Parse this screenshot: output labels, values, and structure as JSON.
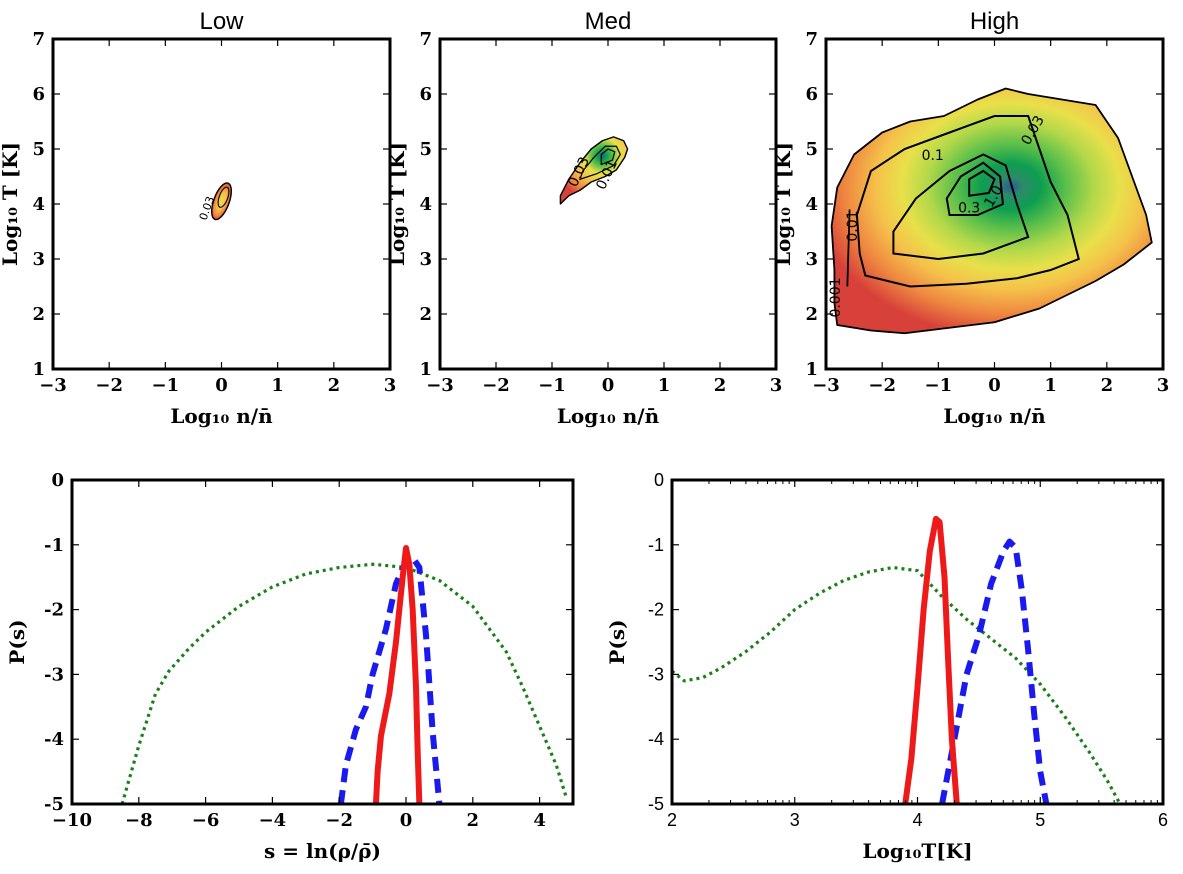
{
  "chart_data": [
    {
      "type": "contour",
      "panel": "low",
      "title": "Low",
      "xlabel": "Log₁₀ n/n̄",
      "ylabel": "Log₁₀ T [K]",
      "xlim": [
        -3,
        3
      ],
      "ylim": [
        1,
        7
      ],
      "xticks": [
        -3,
        -2,
        -1,
        0,
        1,
        2,
        3
      ],
      "yticks": [
        1,
        2,
        3,
        4,
        5,
        6,
        7
      ],
      "region": {
        "center": [
          0.0,
          4.05
        ],
        "extent_x": [
          -0.35,
          0.15
        ],
        "extent_y": [
          3.7,
          4.4
        ],
        "tilt_deg": 70
      },
      "contour_labels": [
        {
          "text": "0.03",
          "x": -0.2,
          "y": 3.9
        }
      ],
      "colormap": [
        "#d8403a",
        "#ee8640",
        "#f5c14a",
        "#e8e04a",
        "#b2d84a",
        "#5cbf4a",
        "#0d9e50",
        "#2e8a6a",
        "#2a5a9b"
      ]
    },
    {
      "type": "contour",
      "panel": "med",
      "title": "Med",
      "xlabel": "Log₁₀ n/n̄",
      "ylabel": "Log₁₀ T [K]",
      "xlim": [
        -3,
        3
      ],
      "ylim": [
        1,
        7
      ],
      "xticks": [
        -3,
        -2,
        -1,
        0,
        1,
        2,
        3
      ],
      "yticks": [
        1,
        2,
        3,
        4,
        5,
        6,
        7
      ],
      "region": {
        "center": [
          -0.15,
          4.6
        ],
        "extent_x": [
          -0.85,
          0.35
        ],
        "extent_y": [
          4.0,
          5.2
        ],
        "tilt_deg": 35
      },
      "contour_labels": [
        {
          "text": "0.03",
          "x": -0.45,
          "y": 4.55
        },
        {
          "text": "0.01",
          "x": 0.05,
          "y": 4.5
        }
      ]
    },
    {
      "type": "contour",
      "panel": "high",
      "title": "High",
      "xlabel": "Log₁₀ n/n̄",
      "ylabel": "Log₁₀ T [K]",
      "xlim": [
        -3,
        3
      ],
      "ylim": [
        1,
        7
      ],
      "xticks": [
        -3,
        -2,
        -1,
        0,
        1,
        2,
        3
      ],
      "yticks": [
        1,
        2,
        3,
        4,
        5,
        6,
        7
      ],
      "peak": [
        -0.3,
        4.3
      ],
      "contour_levels": [
        0.001,
        0.01,
        0.03,
        0.1,
        0.3,
        1.0
      ],
      "contour_labels": [
        {
          "text": "0.03",
          "x": 0.75,
          "y": 5.3
        },
        {
          "text": "0.1",
          "x": -1.1,
          "y": 4.8
        },
        {
          "text": "0.3",
          "x": -0.45,
          "y": 3.85
        },
        {
          "text": "1.0",
          "x": 0.05,
          "y": 4.1
        },
        {
          "text": "0.01",
          "x": -2.45,
          "y": 3.6
        },
        {
          "text": "0.001",
          "x": -2.75,
          "y": 2.3
        }
      ]
    },
    {
      "type": "line",
      "panel": "density-pdf",
      "xlabel": "s = ln(ρ/ρ̄)",
      "ylabel": "P(s)",
      "xlim": [
        -10,
        5
      ],
      "ylim": [
        -5,
        0
      ],
      "xticks": [
        -10,
        -8,
        -6,
        -4,
        -2,
        0,
        2,
        4
      ],
      "yticks": [
        0,
        -1,
        -2,
        -3,
        -4,
        -5
      ],
      "ytick_labels": [
        "0",
        "-1",
        "-2",
        "-3",
        "-4",
        "-5"
      ],
      "series": [
        {
          "style": "dotted",
          "color": "#1a7f1a",
          "x": [
            -8.5,
            -8.0,
            -7.5,
            -7.1,
            -6.5,
            -6.0,
            -5.0,
            -4.0,
            -3.0,
            -2.0,
            -1.0,
            0.0,
            1.0,
            2.0,
            3.0,
            3.5,
            4.0,
            4.5,
            4.8
          ],
          "y": [
            -5.0,
            -4.1,
            -3.3,
            -2.95,
            -2.6,
            -2.35,
            -1.95,
            -1.65,
            -1.45,
            -1.35,
            -1.3,
            -1.35,
            -1.55,
            -1.95,
            -2.65,
            -3.2,
            -3.8,
            -4.4,
            -4.9
          ]
        },
        {
          "style": "dashed",
          "color": "#1a1aee",
          "x": [
            -1.95,
            -1.8,
            -1.5,
            -1.2,
            -1.0,
            -0.6,
            -0.3,
            0.0,
            0.2,
            0.4,
            0.6,
            0.8,
            1.0
          ],
          "y": [
            -5.0,
            -4.4,
            -3.85,
            -3.5,
            -3.0,
            -2.3,
            -1.6,
            -1.25,
            -1.2,
            -1.35,
            -2.4,
            -3.9,
            -5.0
          ]
        },
        {
          "style": "solid",
          "color": "#ee1a1a",
          "x": [
            -0.9,
            -0.85,
            -0.75,
            -0.5,
            -0.3,
            -0.1,
            0.0,
            0.1,
            0.2,
            0.3,
            0.35,
            0.4
          ],
          "y": [
            -5.0,
            -4.5,
            -3.95,
            -3.3,
            -2.5,
            -1.5,
            -1.05,
            -1.3,
            -2.0,
            -3.2,
            -4.2,
            -5.0
          ]
        }
      ]
    },
    {
      "type": "line",
      "panel": "temperature-pdf",
      "xlabel": "Log₁₀T[K]",
      "ylabel": "P(s)",
      "xlim": [
        2,
        6
      ],
      "ylim": [
        -5,
        0
      ],
      "xticks": [
        2,
        3,
        4,
        5,
        6
      ],
      "yticks": [
        0,
        -1,
        -2,
        -3,
        -4,
        -5
      ],
      "ytick_labels": [
        "0",
        "-1",
        "-2",
        "-3",
        "-4",
        "-5"
      ],
      "series": [
        {
          "style": "dotted",
          "color": "#1a7f1a",
          "x": [
            2.0,
            2.1,
            2.25,
            2.4,
            2.6,
            2.8,
            3.0,
            3.2,
            3.4,
            3.6,
            3.8,
            4.0,
            4.2,
            4.4,
            4.6,
            4.8,
            5.0,
            5.2,
            5.4,
            5.55,
            5.65
          ],
          "y": [
            -2.95,
            -3.1,
            -3.05,
            -2.9,
            -2.65,
            -2.35,
            -2.0,
            -1.75,
            -1.55,
            -1.42,
            -1.35,
            -1.4,
            -1.8,
            -2.15,
            -2.45,
            -2.75,
            -3.15,
            -3.65,
            -4.2,
            -4.65,
            -5.0
          ]
        },
        {
          "style": "dashed",
          "color": "#1a1aee",
          "x": [
            4.2,
            4.3,
            4.4,
            4.5,
            4.6,
            4.7,
            4.75,
            4.8,
            4.85,
            4.9,
            4.95,
            5.0,
            5.05
          ],
          "y": [
            -5.0,
            -4.0,
            -3.0,
            -2.4,
            -1.6,
            -1.1,
            -0.95,
            -1.05,
            -1.7,
            -2.6,
            -3.6,
            -4.5,
            -5.0
          ]
        },
        {
          "style": "solid",
          "color": "#ee1a1a",
          "x": [
            3.9,
            3.95,
            4.0,
            4.05,
            4.1,
            4.15,
            4.18,
            4.22,
            4.25,
            4.28,
            4.32
          ],
          "y": [
            -5.0,
            -4.3,
            -3.2,
            -2.0,
            -1.1,
            -0.6,
            -0.65,
            -1.5,
            -2.8,
            -4.0,
            -5.0
          ]
        }
      ]
    }
  ]
}
